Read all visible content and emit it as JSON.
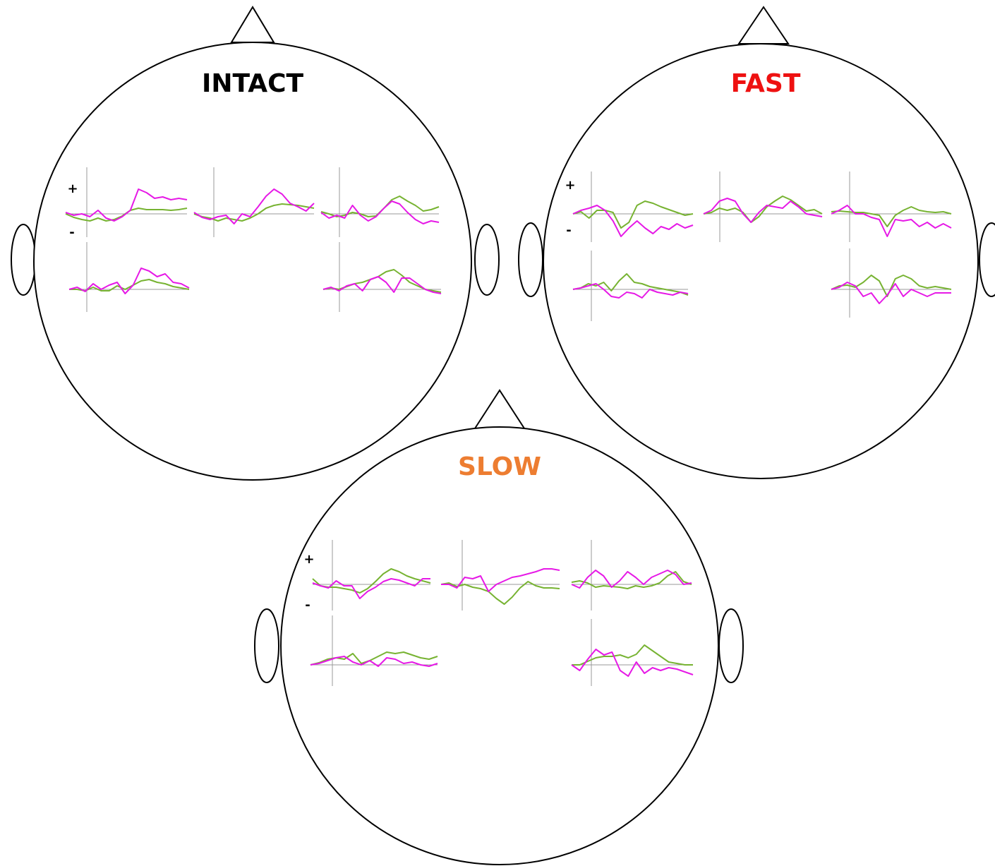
{
  "trace_colors": {
    "magenta": "#e619e6",
    "green": "#77b332"
  },
  "heads": [
    {
      "title": "INTACT",
      "title_color": "#000000",
      "plus": "+",
      "minus": "-",
      "plots": [
        {
          "magenta": [
            2,
            -2,
            0,
            -4,
            5,
            -6,
            -10,
            -4,
            5,
            35,
            30,
            22,
            24,
            20,
            22,
            20
          ],
          "green": [
            0,
            -5,
            -8,
            -10,
            -6,
            -10,
            -8,
            -3,
            5,
            8,
            6,
            6,
            6,
            5,
            6,
            8
          ]
        },
        {
          "magenta": [
            2,
            -5,
            -8,
            -4,
            -2,
            -14,
            0,
            -4,
            10,
            25,
            35,
            28,
            15,
            10,
            4,
            15
          ],
          "green": [
            0,
            -4,
            -6,
            -10,
            -6,
            -8,
            -10,
            -6,
            0,
            8,
            12,
            14,
            13,
            12,
            10,
            8
          ]
        },
        {
          "magenta": [
            2,
            -6,
            -2,
            -6,
            12,
            -2,
            -10,
            -4,
            8,
            18,
            14,
            2,
            -8,
            -14,
            -10,
            -12
          ],
          "green": [
            3,
            0,
            -4,
            -2,
            2,
            0,
            -4,
            -3,
            8,
            20,
            25,
            18,
            12,
            4,
            6,
            10
          ]
        },
        {
          "magenta": [
            0,
            3,
            -3,
            8,
            0,
            6,
            10,
            -6,
            6,
            30,
            26,
            18,
            22,
            10,
            8,
            2
          ],
          "green": [
            0,
            0,
            -2,
            3,
            -2,
            -2,
            5,
            0,
            6,
            12,
            14,
            10,
            8,
            4,
            2,
            0
          ]
        },
        {
          "magenta": [
            0,
            3,
            -2,
            5,
            8,
            -2,
            14,
            18,
            10,
            -4,
            16,
            16,
            8,
            0,
            -4,
            -6
          ],
          "green": [
            0,
            2,
            0,
            4,
            8,
            10,
            14,
            18,
            25,
            28,
            20,
            10,
            5,
            0,
            -2,
            -4
          ]
        }
      ]
    },
    {
      "title": "FAST",
      "title_color": "#ee1111",
      "plus": "+",
      "minus": "-",
      "plots": [
        {
          "magenta": [
            0,
            5,
            8,
            12,
            5,
            -10,
            -32,
            -20,
            -10,
            -20,
            -28,
            -18,
            -22,
            -14,
            -20,
            -16
          ],
          "green": [
            0,
            3,
            -6,
            5,
            5,
            2,
            -20,
            -12,
            12,
            18,
            15,
            10,
            6,
            2,
            -2,
            0
          ]
        },
        {
          "magenta": [
            0,
            5,
            18,
            22,
            18,
            0,
            -12,
            2,
            12,
            10,
            8,
            18,
            10,
            0,
            -2,
            -4
          ],
          "green": [
            0,
            2,
            8,
            5,
            8,
            2,
            -12,
            -4,
            10,
            18,
            25,
            20,
            12,
            4,
            6,
            0
          ]
        },
        {
          "magenta": [
            0,
            5,
            12,
            0,
            0,
            -5,
            -8,
            -32,
            -8,
            -10,
            -8,
            -18,
            -12,
            -20,
            -14,
            -20
          ],
          "green": [
            3,
            4,
            3,
            2,
            2,
            0,
            -2,
            -18,
            -2,
            5,
            10,
            5,
            3,
            2,
            3,
            0
          ]
        },
        {
          "magenta": [
            0,
            2,
            5,
            8,
            0,
            -10,
            -12,
            -4,
            -6,
            -12,
            0,
            -4,
            -6,
            -8,
            -4,
            -6
          ],
          "green": [
            0,
            2,
            8,
            5,
            10,
            -2,
            12,
            22,
            10,
            8,
            4,
            2,
            0,
            -2,
            -4,
            -8
          ]
        },
        {
          "magenta": [
            0,
            3,
            10,
            5,
            -10,
            -5,
            -20,
            -8,
            8,
            -10,
            0,
            -5,
            -10,
            -5,
            -5,
            -5
          ],
          "green": [
            0,
            5,
            6,
            3,
            10,
            20,
            12,
            -10,
            15,
            20,
            15,
            5,
            2,
            4,
            2,
            0
          ]
        }
      ]
    },
    {
      "title": "SLOW",
      "title_color": "#ed7d31",
      "plus": "+",
      "minus": "-",
      "plots": [
        {
          "magenta": [
            2,
            -2,
            -5,
            5,
            -2,
            -2,
            -20,
            -10,
            -4,
            4,
            8,
            6,
            2,
            -2,
            8,
            8
          ],
          "green": [
            8,
            -2,
            -4,
            -4,
            -6,
            -8,
            -12,
            -6,
            4,
            15,
            22,
            18,
            12,
            8,
            5,
            2
          ]
        },
        {
          "magenta": [
            0,
            0,
            -5,
            10,
            8,
            12,
            -10,
            0,
            5,
            10,
            12,
            15,
            18,
            22,
            22,
            20
          ],
          "green": [
            0,
            2,
            -3,
            0,
            -4,
            -6,
            -10,
            -20,
            -28,
            -18,
            -5,
            4,
            -2,
            -5,
            -5,
            -6
          ]
        },
        {
          "magenta": [
            0,
            -5,
            10,
            20,
            12,
            -4,
            5,
            18,
            10,
            0,
            10,
            15,
            20,
            14,
            0,
            2
          ],
          "green": [
            3,
            5,
            2,
            -4,
            -2,
            -3,
            -4,
            -6,
            -2,
            -4,
            -2,
            2,
            12,
            18,
            4,
            0
          ]
        },
        {
          "magenta": [
            0,
            2,
            6,
            10,
            12,
            4,
            0,
            6,
            -2,
            10,
            8,
            2,
            4,
            0,
            -2,
            2
          ],
          "green": [
            0,
            3,
            8,
            10,
            8,
            16,
            2,
            6,
            12,
            18,
            16,
            18,
            14,
            10,
            8,
            12
          ]
        },
        {
          "magenta": [
            0,
            -8,
            8,
            22,
            14,
            18,
            -8,
            -16,
            4,
            -12,
            -4,
            -8,
            -4,
            -6,
            -10,
            -14
          ],
          "green": [
            0,
            0,
            5,
            10,
            12,
            12,
            14,
            10,
            15,
            28,
            20,
            12,
            4,
            2,
            0,
            0
          ]
        }
      ]
    }
  ]
}
